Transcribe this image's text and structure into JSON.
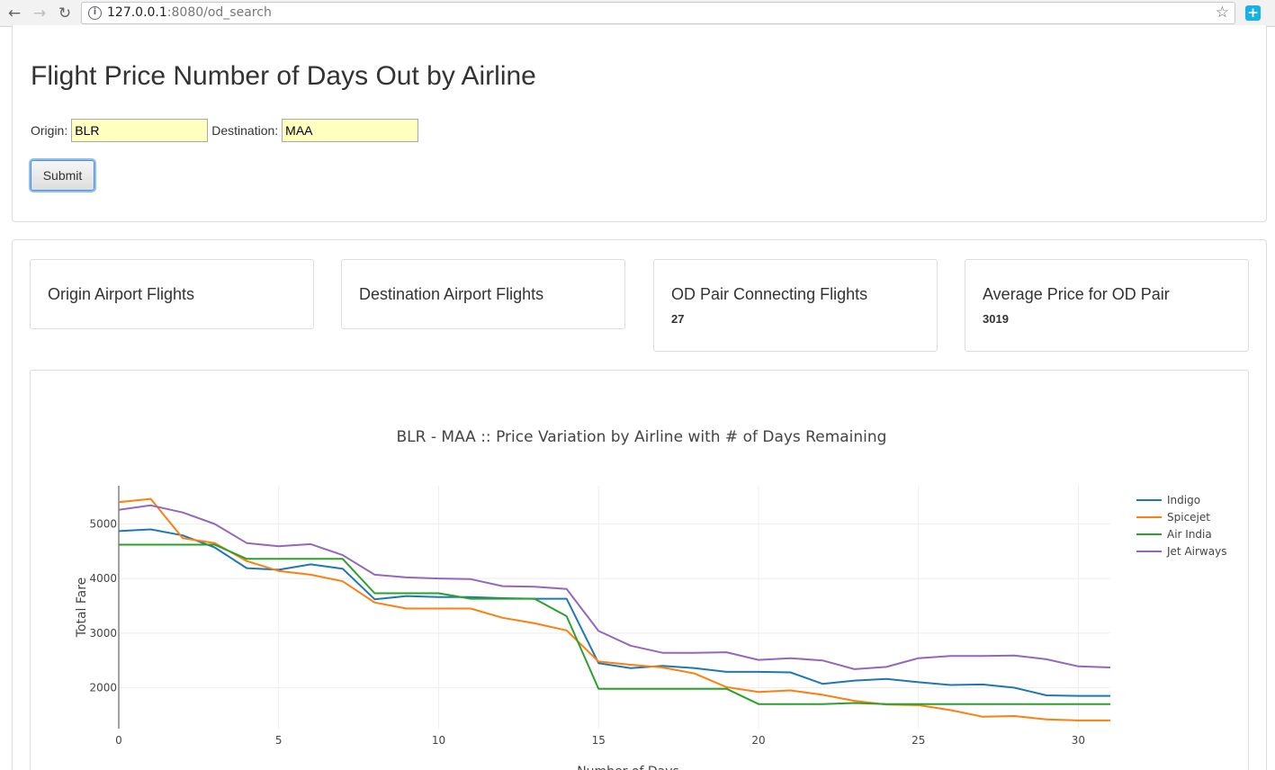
{
  "browser": {
    "url_host": "127.0.0.1",
    "url_rest": ":8080/od_search"
  },
  "page": {
    "title": "Flight Price Number of Days Out by Airline"
  },
  "form": {
    "origin_label": "Origin:",
    "origin_value": "BLR",
    "destination_label": "Destination:",
    "destination_value": "MAA",
    "submit_label": "Submit"
  },
  "cards": [
    {
      "title": "Origin Airport Flights",
      "value": ""
    },
    {
      "title": "Destination Airport Flights",
      "value": ""
    },
    {
      "title": "OD Pair Connecting Flights",
      "value": "27"
    },
    {
      "title": "Average Price for OD Pair",
      "value": "3019"
    }
  ],
  "chart_data": {
    "type": "line",
    "title": "BLR - MAA :: Price Variation by Airline with # of Days Remaining",
    "xlabel": "Number of Days",
    "ylabel": "Total Fare",
    "xlim": [
      0,
      31
    ],
    "ylim": [
      1250,
      5700
    ],
    "xticks": [
      0,
      5,
      10,
      15,
      20,
      25,
      30
    ],
    "yticks": [
      2000,
      3000,
      4000,
      5000
    ],
    "grid": true,
    "legend_position": "top-right",
    "x": [
      0,
      1,
      2,
      3,
      4,
      5,
      6,
      7,
      8,
      9,
      10,
      11,
      12,
      13,
      14,
      15,
      16,
      17,
      18,
      19,
      20,
      21,
      22,
      23,
      24,
      25,
      26,
      27,
      28,
      29,
      30,
      31
    ],
    "series": [
      {
        "name": "Indigo",
        "color": "#1f77b4",
        "values": [
          4870,
          4900,
          4790,
          4570,
          4190,
          4160,
          4260,
          4180,
          3620,
          3680,
          3660,
          3660,
          3640,
          3630,
          3630,
          2450,
          2360,
          2400,
          2360,
          2290,
          2290,
          2280,
          2070,
          2130,
          2160,
          2100,
          2050,
          2060,
          2000,
          1860,
          1850,
          1850
        ]
      },
      {
        "name": "Spicejet",
        "color": "#ff7f0e",
        "values": [
          5400,
          5460,
          4740,
          4650,
          4320,
          4140,
          4070,
          3950,
          3560,
          3450,
          3450,
          3450,
          3280,
          3180,
          3050,
          2480,
          2420,
          2370,
          2260,
          2010,
          1920,
          1950,
          1870,
          1760,
          1690,
          1680,
          1590,
          1470,
          1480,
          1420,
          1400,
          1400
        ]
      },
      {
        "name": "Air India",
        "color": "#2ca02c",
        "values": [
          4620,
          4620,
          4620,
          4620,
          4360,
          4360,
          4360,
          4360,
          3730,
          3730,
          3730,
          3630,
          3630,
          3630,
          3310,
          1980,
          1980,
          1980,
          1980,
          1980,
          1700,
          1700,
          1700,
          1720,
          1700,
          1700,
          1700,
          1700,
          1700,
          1700,
          1700,
          1700
        ]
      },
      {
        "name": "Jet Airways",
        "color": "#9467bd",
        "values": [
          5260,
          5340,
          5210,
          5000,
          4650,
          4590,
          4630,
          4430,
          4070,
          4020,
          4000,
          3990,
          3860,
          3850,
          3810,
          3040,
          2770,
          2640,
          2640,
          2650,
          2510,
          2540,
          2500,
          2340,
          2380,
          2540,
          2580,
          2580,
          2590,
          2520,
          2390,
          2370
        ]
      }
    ]
  }
}
